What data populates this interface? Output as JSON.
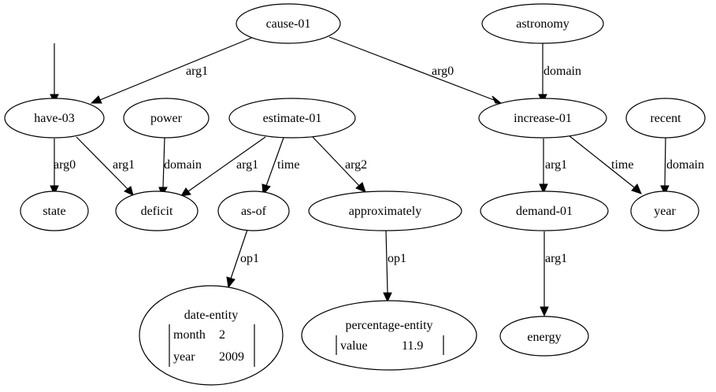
{
  "nodes": {
    "cause": "cause-01",
    "astronomy": "astronomy",
    "have": "have-03",
    "power": "power",
    "estimate": "estimate-01",
    "increase": "increase-01",
    "recent": "recent",
    "state": "state",
    "deficit": "deficit",
    "asof": "as-of",
    "approximately": "approximately",
    "demand": "demand-01",
    "year": "year",
    "date_entity": {
      "title": "date-entity",
      "rows": [
        {
          "key": "month",
          "value": "2"
        },
        {
          "key": "year",
          "value": "2009"
        }
      ]
    },
    "percentage_entity": {
      "title": "percentage-entity",
      "rows": [
        {
          "key": "value",
          "value": "11.9"
        }
      ]
    },
    "energy": "energy"
  },
  "edges": {
    "cause_have": "arg1",
    "cause_increase": "arg0",
    "astronomy_increase": "domain",
    "have_state": "arg0",
    "have_deficit": "arg1",
    "power_deficit": "domain",
    "estimate_deficit": "arg1",
    "estimate_asof": "time",
    "estimate_approximately": "arg2",
    "increase_demand": "arg1",
    "increase_year": "time",
    "recent_year": "domain",
    "asof_date": "op1",
    "approximately_percentage": "op1",
    "demand_energy": "arg1"
  }
}
